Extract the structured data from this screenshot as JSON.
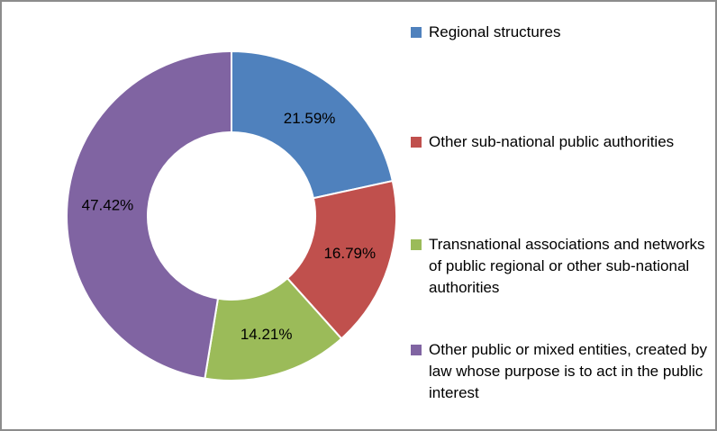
{
  "chart_data": {
    "type": "donut",
    "categories": [
      "Regional structures",
      "Other sub-national public authorities",
      "Transnational associations and networks of public regional or other sub-national authorities",
      "Other public or mixed entities, created by law whose purpose is to act in the public interest"
    ],
    "values": [
      21.59,
      16.79,
      14.21,
      47.42
    ],
    "value_labels": [
      "21.59%",
      "16.79%",
      "14.21%",
      "47.42%"
    ],
    "colors": [
      "#4f81bd",
      "#c0504d",
      "#9bbb59",
      "#8064a2"
    ],
    "legend": "right"
  }
}
